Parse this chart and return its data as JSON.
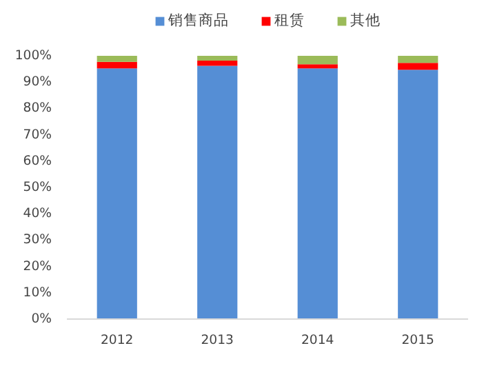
{
  "chart_data": {
    "type": "bar",
    "stacked": true,
    "categories": [
      "2012",
      "2013",
      "2014",
      "2015"
    ],
    "series": [
      {
        "name": "销售商品",
        "color": "#558ed5",
        "values": [
          95.2,
          96.2,
          95.2,
          94.7
        ]
      },
      {
        "name": "租赁",
        "color": "#ff0000",
        "values": [
          2.5,
          2.0,
          1.6,
          2.6
        ]
      },
      {
        "name": "其他",
        "color": "#9bbb59",
        "values": [
          2.3,
          1.8,
          3.2,
          2.7
        ]
      }
    ],
    "ylim": [
      0,
      100
    ],
    "yticks": [
      {
        "value": 0,
        "label": "0%"
      },
      {
        "value": 10,
        "label": "10%"
      },
      {
        "value": 20,
        "label": "20%"
      },
      {
        "value": 30,
        "label": "30%"
      },
      {
        "value": 40,
        "label": "40%"
      },
      {
        "value": 50,
        "label": "50%"
      },
      {
        "value": 60,
        "label": "60%"
      },
      {
        "value": 70,
        "label": "70%"
      },
      {
        "value": 80,
        "label": "80%"
      },
      {
        "value": 90,
        "label": "90%"
      },
      {
        "value": 100,
        "label": "100%"
      }
    ],
    "legend": "top",
    "grid": false
  }
}
